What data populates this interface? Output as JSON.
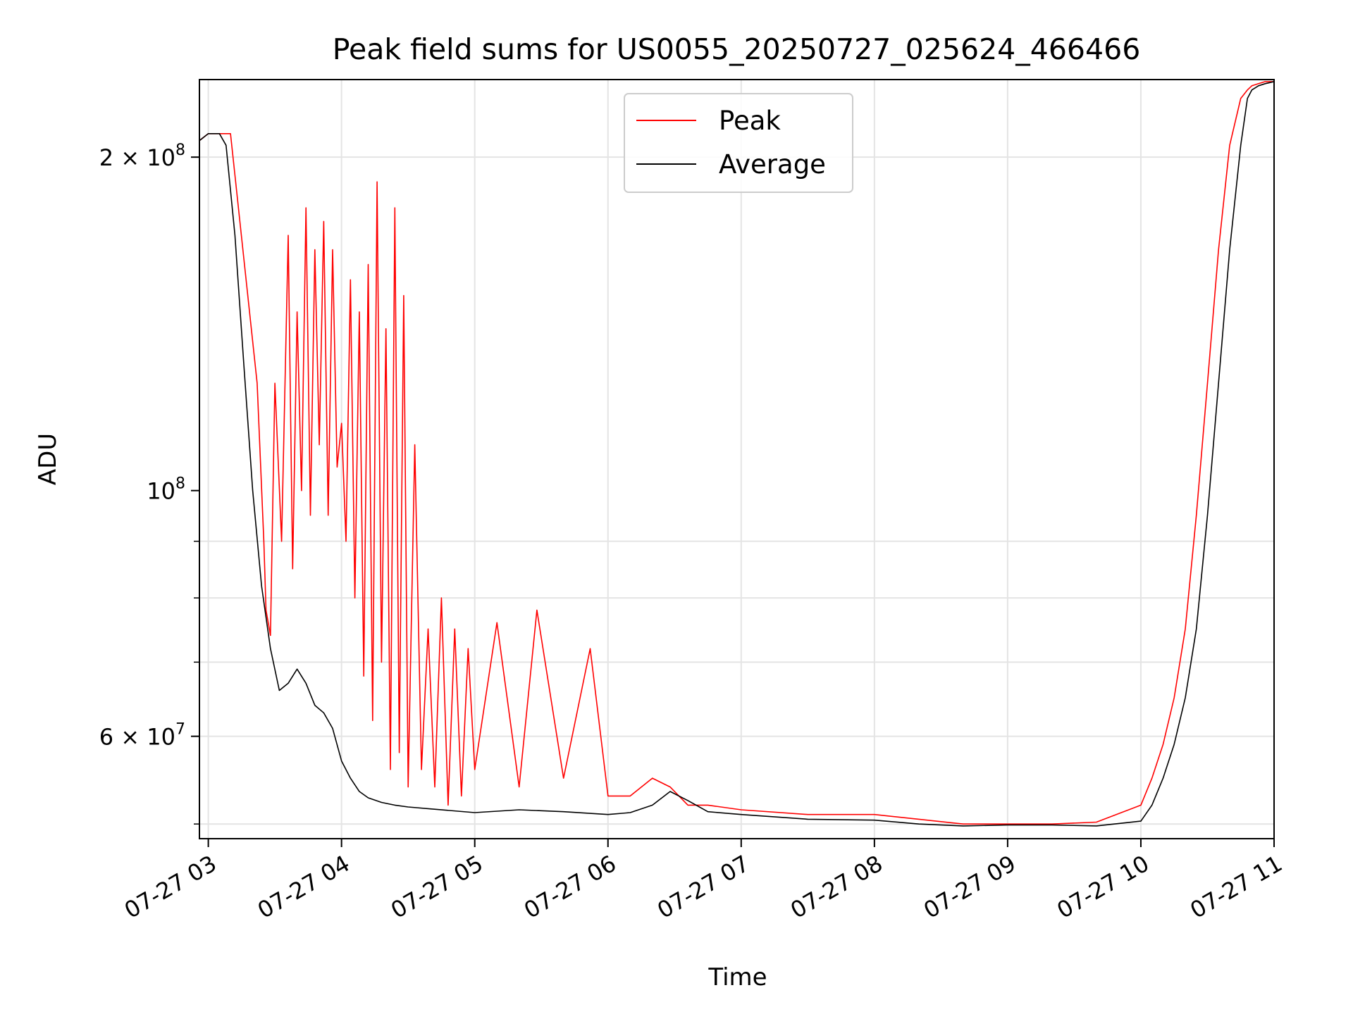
{
  "chart_data": {
    "type": "line",
    "title": "Peak field sums for US0055_20250727_025624_466466",
    "xlabel": "Time",
    "ylabel": "ADU",
    "yscale": "log",
    "ylim": [
      48500000,
      235000000
    ],
    "xlim": [
      "2025-07-27 02:56",
      "2025-07-27 11:00"
    ],
    "grid": true,
    "legend": {
      "position": "top-center"
    },
    "x_ticks": [
      "07-27 03",
      "07-27 04",
      "07-27 05",
      "07-27 06",
      "07-27 07",
      "07-27 08",
      "07-27 09",
      "07-27 10",
      "07-27 11"
    ],
    "y_ticks": [
      {
        "value": 200000000,
        "base": "2 × 10",
        "exp": "8"
      },
      {
        "value": 100000000,
        "base": "10",
        "exp": "8"
      },
      {
        "value": 60000000,
        "base": "6 × 10",
        "exp": "7"
      }
    ],
    "series": [
      {
        "name": "Peak",
        "color": "#ff0000",
        "x": [
          "2025-07-27 02:56",
          "2025-07-27 03:00",
          "2025-07-27 03:10",
          "2025-07-27 03:22",
          "2025-07-27 03:25",
          "2025-07-27 03:26",
          "2025-07-27 03:28",
          "2025-07-27 03:30",
          "2025-07-27 03:33",
          "2025-07-27 03:36",
          "2025-07-27 03:38",
          "2025-07-27 03:40",
          "2025-07-27 03:42",
          "2025-07-27 03:44",
          "2025-07-27 03:46",
          "2025-07-27 03:48",
          "2025-07-27 03:50",
          "2025-07-27 03:52",
          "2025-07-27 03:54",
          "2025-07-27 03:56",
          "2025-07-27 03:58",
          "2025-07-27 04:00",
          "2025-07-27 04:02",
          "2025-07-27 04:04",
          "2025-07-27 04:06",
          "2025-07-27 04:08",
          "2025-07-27 04:10",
          "2025-07-27 04:12",
          "2025-07-27 04:14",
          "2025-07-27 04:16",
          "2025-07-27 04:18",
          "2025-07-27 04:20",
          "2025-07-27 04:22",
          "2025-07-27 04:24",
          "2025-07-27 04:26",
          "2025-07-27 04:28",
          "2025-07-27 04:30",
          "2025-07-27 04:33",
          "2025-07-27 04:36",
          "2025-07-27 04:39",
          "2025-07-27 04:42",
          "2025-07-27 04:45",
          "2025-07-27 04:48",
          "2025-07-27 04:51",
          "2025-07-27 04:54",
          "2025-07-27 04:57",
          "2025-07-27 05:00",
          "2025-07-27 05:10",
          "2025-07-27 05:20",
          "2025-07-27 05:28",
          "2025-07-27 05:40",
          "2025-07-27 05:52",
          "2025-07-27 06:00",
          "2025-07-27 06:10",
          "2025-07-27 06:20",
          "2025-07-27 06:28",
          "2025-07-27 06:36",
          "2025-07-27 06:45",
          "2025-07-27 07:00",
          "2025-07-27 07:30",
          "2025-07-27 08:00",
          "2025-07-27 08:20",
          "2025-07-27 08:40",
          "2025-07-27 09:00",
          "2025-07-27 09:20",
          "2025-07-27 09:40",
          "2025-07-27 10:00",
          "2025-07-27 10:05",
          "2025-07-27 10:10",
          "2025-07-27 10:15",
          "2025-07-27 10:20",
          "2025-07-27 10:25",
          "2025-07-27 10:30",
          "2025-07-27 10:35",
          "2025-07-27 10:40",
          "2025-07-27 10:45",
          "2025-07-27 10:48",
          "2025-07-27 10:50",
          "2025-07-27 10:53",
          "2025-07-27 10:56",
          "2025-07-27 11:00"
        ],
        "values": [
          207000000,
          210000000,
          210000000,
          125000000,
          90000000,
          78000000,
          74000000,
          125000000,
          90000000,
          170000000,
          85000000,
          145000000,
          100000000,
          180000000,
          95000000,
          165000000,
          110000000,
          175000000,
          95000000,
          165000000,
          105000000,
          115000000,
          90000000,
          155000000,
          80000000,
          145000000,
          68000000,
          160000000,
          62000000,
          190000000,
          70000000,
          140000000,
          56000000,
          180000000,
          58000000,
          150000000,
          54000000,
          110000000,
          56000000,
          75000000,
          54000000,
          80000000,
          52000000,
          75000000,
          53000000,
          72000000,
          56000000,
          76000000,
          54000000,
          78000000,
          55000000,
          72000000,
          53000000,
          53000000,
          55000000,
          54000000,
          52000000,
          52000000,
          51500000,
          51000000,
          51000000,
          50500000,
          50000000,
          50000000,
          50000000,
          50200000,
          52000000,
          55000000,
          59000000,
          65000000,
          75000000,
          95000000,
          125000000,
          165000000,
          205000000,
          226000000,
          230000000,
          232000000,
          233000000,
          234000000,
          234000000
        ]
      },
      {
        "name": "Average",
        "color": "#000000",
        "x": [
          "2025-07-27 02:56",
          "2025-07-27 03:00",
          "2025-07-27 03:05",
          "2025-07-27 03:08",
          "2025-07-27 03:12",
          "2025-07-27 03:16",
          "2025-07-27 03:20",
          "2025-07-27 03:24",
          "2025-07-27 03:28",
          "2025-07-27 03:32",
          "2025-07-27 03:36",
          "2025-07-27 03:40",
          "2025-07-27 03:44",
          "2025-07-27 03:48",
          "2025-07-27 03:52",
          "2025-07-27 03:56",
          "2025-07-27 04:00",
          "2025-07-27 04:04",
          "2025-07-27 04:08",
          "2025-07-27 04:12",
          "2025-07-27 04:18",
          "2025-07-27 04:24",
          "2025-07-27 04:30",
          "2025-07-27 04:40",
          "2025-07-27 05:00",
          "2025-07-27 05:20",
          "2025-07-27 05:40",
          "2025-07-27 06:00",
          "2025-07-27 06:10",
          "2025-07-27 06:20",
          "2025-07-27 06:28",
          "2025-07-27 06:36",
          "2025-07-27 06:45",
          "2025-07-27 07:00",
          "2025-07-27 07:30",
          "2025-07-27 08:00",
          "2025-07-27 08:20",
          "2025-07-27 08:40",
          "2025-07-27 09:00",
          "2025-07-27 09:20",
          "2025-07-27 09:40",
          "2025-07-27 10:00",
          "2025-07-27 10:05",
          "2025-07-27 10:10",
          "2025-07-27 10:15",
          "2025-07-27 10:20",
          "2025-07-27 10:25",
          "2025-07-27 10:30",
          "2025-07-27 10:35",
          "2025-07-27 10:40",
          "2025-07-27 10:45",
          "2025-07-27 10:48",
          "2025-07-27 10:50",
          "2025-07-27 10:53",
          "2025-07-27 10:56",
          "2025-07-27 11:00"
        ],
        "values": [
          207000000,
          210000000,
          210000000,
          205000000,
          170000000,
          130000000,
          100000000,
          82000000,
          72000000,
          66000000,
          67000000,
          69000000,
          67000000,
          64000000,
          63000000,
          61000000,
          57000000,
          55000000,
          53500000,
          52800000,
          52300000,
          52000000,
          51800000,
          51600000,
          51200000,
          51500000,
          51300000,
          51000000,
          51200000,
          52000000,
          53500000,
          52500000,
          51300000,
          51000000,
          50500000,
          50400000,
          50000000,
          49800000,
          49900000,
          49900000,
          49800000,
          50300000,
          52000000,
          55000000,
          59000000,
          65000000,
          75000000,
          95000000,
          125000000,
          165000000,
          205000000,
          226000000,
          230000000,
          232000000,
          233000000,
          234000000
        ]
      }
    ]
  }
}
